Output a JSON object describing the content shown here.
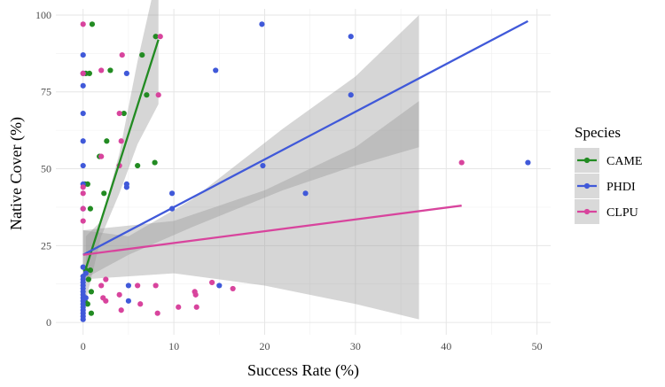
{
  "chart_data": {
    "type": "scatter",
    "xlabel": "Success Rate (%)",
    "ylabel": "Native Cover (%)",
    "xlim": [
      -3,
      51.5
    ],
    "ylim": [
      -4,
      102
    ],
    "x_ticks": [
      0,
      10,
      20,
      30,
      40,
      50
    ],
    "y_ticks": [
      0,
      25,
      50,
      75,
      100
    ],
    "grid": true,
    "legend_title": "Species",
    "legend_position": "right",
    "band_color": "#999999",
    "series": [
      {
        "name": "CAME",
        "color": "#228B22",
        "points": [
          [
            0.3,
            81
          ],
          [
            0.7,
            81
          ],
          [
            1,
            97
          ],
          [
            0.2,
            45
          ],
          [
            0.5,
            45
          ],
          [
            0.8,
            37
          ],
          [
            0.3,
            17
          ],
          [
            0.8,
            17
          ],
          [
            0.6,
            14
          ],
          [
            0.9,
            10
          ],
          [
            0.2,
            7
          ],
          [
            0.5,
            6
          ],
          [
            0.9,
            3
          ],
          [
            3,
            82
          ],
          [
            4.5,
            68
          ],
          [
            6.5,
            87
          ],
          [
            7,
            74
          ],
          [
            8,
            93
          ],
          [
            1.8,
            54
          ],
          [
            2.6,
            59
          ],
          [
            2.3,
            42
          ],
          [
            6,
            51
          ],
          [
            7.9,
            52
          ]
        ],
        "fit": {
          "x": [
            0.3,
            8.3
          ],
          "y": [
            17.5,
            92
          ],
          "band_upper": [
            [
              0.3,
              28
            ],
            [
              2,
              33
            ],
            [
              4,
              55
            ],
            [
              6,
              85
            ],
            [
              8.3,
              115
            ]
          ],
          "band_lower": [
            [
              0.3,
              7
            ],
            [
              2,
              28
            ],
            [
              4,
              42
            ],
            [
              6,
              58
            ],
            [
              8.3,
              71
            ]
          ]
        }
      },
      {
        "name": "PHDI",
        "color": "#4059D9",
        "points": [
          [
            0,
            87
          ],
          [
            0,
            81
          ],
          [
            0,
            77
          ],
          [
            0,
            68
          ],
          [
            0,
            59
          ],
          [
            0,
            51
          ],
          [
            0,
            45
          ],
          [
            0,
            37
          ],
          [
            0,
            18
          ],
          [
            0,
            15
          ],
          [
            0,
            14
          ],
          [
            0,
            13
          ],
          [
            0,
            12
          ],
          [
            0,
            11
          ],
          [
            0,
            10
          ],
          [
            0,
            9
          ],
          [
            0,
            8
          ],
          [
            0,
            7
          ],
          [
            0,
            6
          ],
          [
            0,
            5
          ],
          [
            0,
            4
          ],
          [
            0,
            3
          ],
          [
            0,
            2
          ],
          [
            0,
            1
          ],
          [
            0.3,
            16
          ],
          [
            0.3,
            8
          ],
          [
            4.8,
            81
          ],
          [
            4.8,
            45
          ],
          [
            4.8,
            44
          ],
          [
            5,
            12
          ],
          [
            5,
            7
          ],
          [
            9.8,
            42
          ],
          [
            9.8,
            37
          ],
          [
            14.6,
            82
          ],
          [
            15,
            12
          ],
          [
            19.7,
            97
          ],
          [
            19.8,
            51
          ],
          [
            24.5,
            42
          ],
          [
            29.5,
            93
          ],
          [
            29.5,
            74
          ],
          [
            49,
            52
          ]
        ],
        "fit": {
          "x": [
            0,
            49
          ],
          "y": [
            22,
            98
          ],
          "band_upper": [
            [
              0,
              30
            ],
            [
              5,
              28
            ],
            [
              12,
              40
            ],
            [
              22,
              63
            ],
            [
              30,
              80
            ],
            [
              37,
              100
            ]
          ],
          "band_lower": [
            [
              0,
              14
            ],
            [
              5,
              22
            ],
            [
              12,
              31
            ],
            [
              22,
              43
            ],
            [
              30,
              51
            ],
            [
              37,
              57
            ]
          ]
        }
      },
      {
        "name": "CLPU",
        "color": "#D8449D",
        "points": [
          [
            0,
            97
          ],
          [
            0,
            81
          ],
          [
            0,
            44
          ],
          [
            0,
            42
          ],
          [
            0,
            37
          ],
          [
            0,
            33
          ],
          [
            2,
            82
          ],
          [
            4.3,
            87
          ],
          [
            4,
            68
          ],
          [
            4.2,
            59
          ],
          [
            4,
            51
          ],
          [
            2,
            54
          ],
          [
            2,
            12
          ],
          [
            2.2,
            8
          ],
          [
            2.5,
            14
          ],
          [
            2.5,
            7
          ],
          [
            4,
            9
          ],
          [
            4.2,
            4
          ],
          [
            6,
            12
          ],
          [
            6.3,
            6
          ],
          [
            8,
            12
          ],
          [
            8.3,
            74
          ],
          [
            8.5,
            93
          ],
          [
            8.2,
            3
          ],
          [
            10.5,
            5
          ],
          [
            12.3,
            10
          ],
          [
            12.4,
            9
          ],
          [
            12.5,
            5
          ],
          [
            14.2,
            13
          ],
          [
            16.5,
            11
          ],
          [
            41.7,
            52
          ]
        ],
        "fit": {
          "x": [
            0,
            41.7
          ],
          "y": [
            22,
            38
          ],
          "band_upper": [
            [
              0,
              30
            ],
            [
              10,
              33
            ],
            [
              20,
              43
            ],
            [
              30,
              57
            ],
            [
              37,
              72
            ]
          ],
          "band_lower": [
            [
              0,
              14
            ],
            [
              10,
              16
            ],
            [
              20,
              12
            ],
            [
              30,
              6
            ],
            [
              37,
              1
            ]
          ]
        }
      }
    ]
  }
}
